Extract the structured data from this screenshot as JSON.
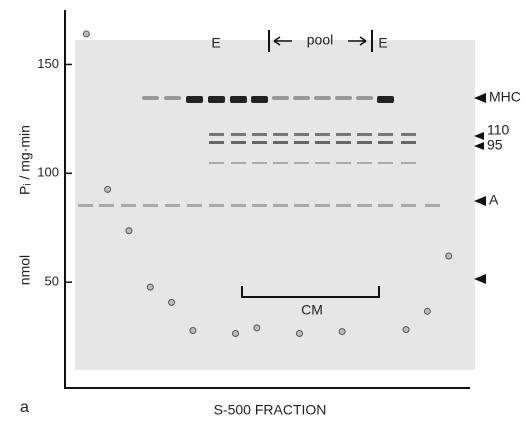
{
  "chart_data": {
    "type": "scatter",
    "x": [
      1,
      2,
      3,
      4,
      5,
      6,
      8,
      9,
      11,
      13,
      16,
      17,
      18
    ],
    "values": [
      164,
      92.6,
      73.6,
      47.7,
      40.7,
      27.8,
      26.4,
      29,
      26.4,
      27.3,
      28.2,
      36.6,
      62
    ],
    "color": "#bbbbbb",
    "xlim": [
      0,
      19
    ],
    "ylim": [
      0,
      175
    ],
    "yticks": [
      50,
      100,
      150
    ],
    "ylabel_unit": "nmol",
    "ylabel": "Pᵢ / mg·min",
    "xlabel": "S-500   FRACTION",
    "panel": "a",
    "annotations": {
      "e_left": "E",
      "pool": "pool",
      "e_right": "E",
      "mhc": "MHC",
      "b110": "110",
      "b95": "95",
      "actin": "A",
      "cm": "CM"
    }
  }
}
